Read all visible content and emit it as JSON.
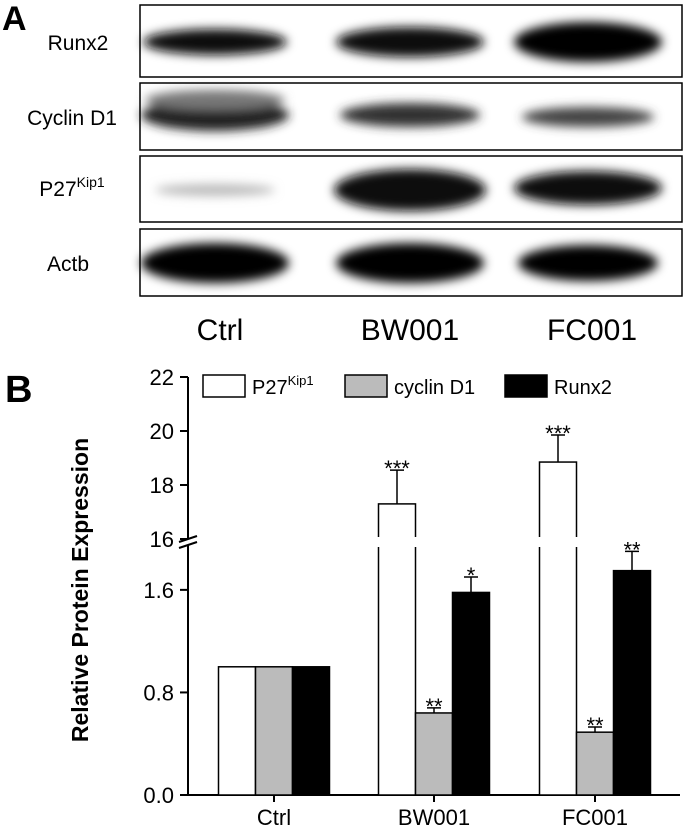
{
  "panel_a": {
    "label": "A",
    "rows": [
      {
        "label": "Runx2"
      },
      {
        "label": "Cyclin D1"
      },
      {
        "label": "P27",
        "label_superscript": "Kip1"
      },
      {
        "label": "Actb"
      }
    ],
    "columns": [
      "Ctrl",
      "BW001",
      "FC001"
    ]
  },
  "chart_data": {
    "type": "bar",
    "panel_label": "B",
    "y_label": "Relative Protein Expression",
    "categories": [
      "Ctrl",
      "BW001",
      "FC001"
    ],
    "series": [
      {
        "name": "P27",
        "name_superscript": "Kip1",
        "color": "#ffffff",
        "values": [
          1.0,
          17.3,
          18.85
        ],
        "errors": [
          null,
          1.25,
          1.0
        ],
        "annotations": [
          null,
          "***",
          "***"
        ]
      },
      {
        "name": "cyclin D1",
        "color": "#bbbbbb",
        "values": [
          1.0,
          0.64,
          0.49
        ],
        "errors": [
          null,
          0.04,
          0.04
        ],
        "annotations": [
          null,
          "**",
          "**"
        ]
      },
      {
        "name": "Runx2",
        "color": "#000000",
        "values": [
          1.0,
          1.58,
          1.75
        ],
        "errors": [
          null,
          0.12,
          0.15
        ],
        "annotations": [
          null,
          "*",
          "**"
        ]
      }
    ],
    "ylim": [
      0,
      22
    ],
    "axis_break": [
      1.95,
      16
    ],
    "yticks": [
      {
        "value": 0,
        "label": "0.0"
      },
      0.8,
      1.6,
      16,
      18,
      20,
      22
    ]
  }
}
